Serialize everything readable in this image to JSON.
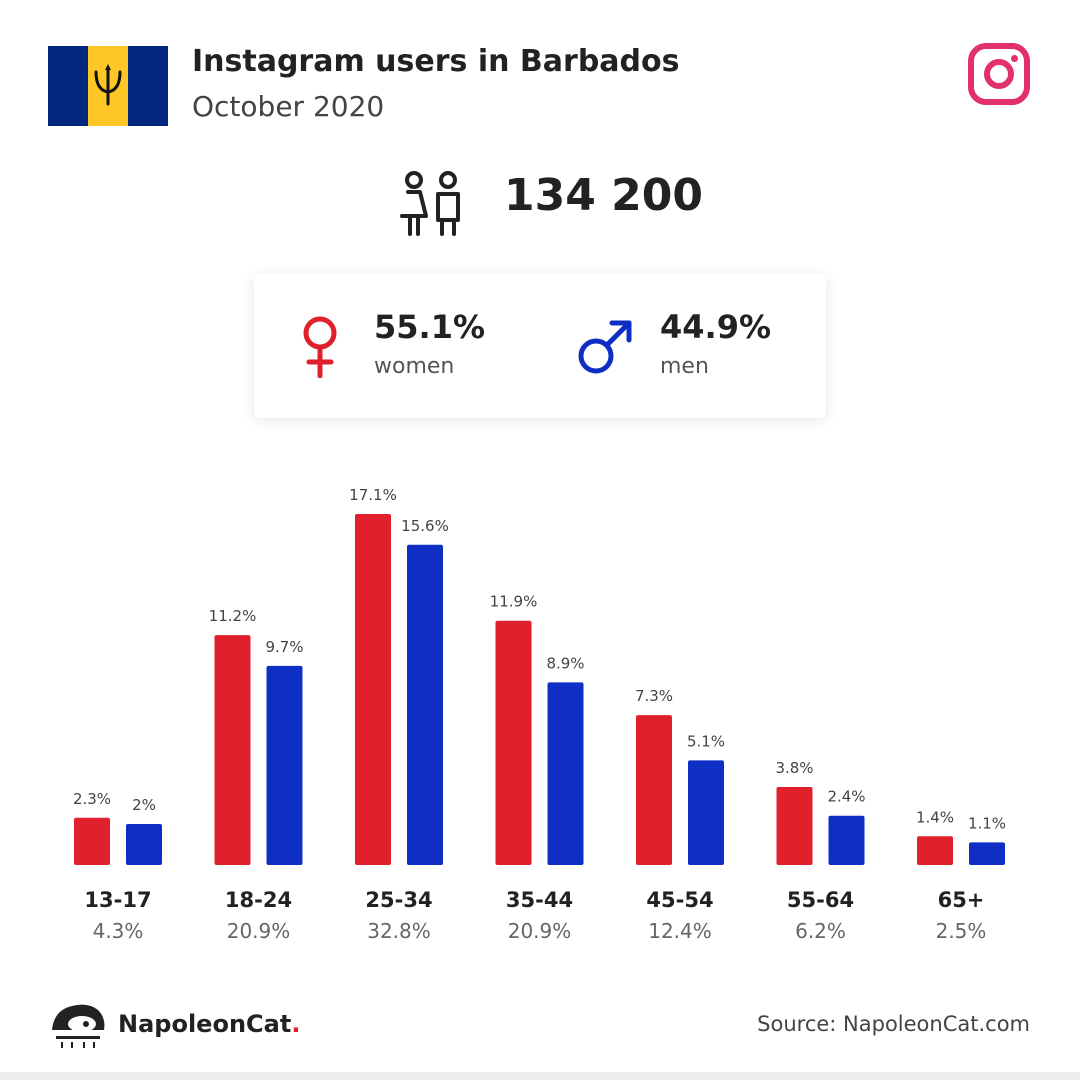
{
  "header": {
    "title": "Instagram users in Barbados",
    "subtitle": "October 2020",
    "flag_icon": "barbados-flag-icon",
    "platform_icon": "instagram-icon",
    "platform_color": "#e1306c"
  },
  "total": {
    "icon": "people-icon",
    "value": "134 200"
  },
  "gender": {
    "women": {
      "pct": "55.1%",
      "label": "women",
      "icon": "female-symbol-icon",
      "color": "#e0202a"
    },
    "men": {
      "pct": "44.9%",
      "label": "men",
      "icon": "male-symbol-icon",
      "color": "#0f2ec4"
    }
  },
  "chart_data": {
    "type": "bar",
    "categories": [
      "13-17",
      "18-24",
      "25-34",
      "35-44",
      "45-54",
      "55-64",
      "65+"
    ],
    "category_totals": [
      "4.3%",
      "20.9%",
      "32.8%",
      "20.9%",
      "12.4%",
      "6.2%",
      "2.5%"
    ],
    "series": [
      {
        "values": [
          2.3,
          11.2,
          17.1,
          11.9,
          7.3,
          3.8,
          1.4
        ],
        "labels": [
          "2.3%",
          "11.2%",
          "17.1%",
          "11.9%",
          "7.3%",
          "3.8%",
          "1.4%"
        ],
        "color": "#e0202a"
      },
      {
        "values": [
          2,
          9.7,
          15.6,
          8.9,
          5.1,
          2.4,
          1.1
        ],
        "labels": [
          "2%",
          "9.7%",
          "15.6%",
          "8.9%",
          "5.1%",
          "2.4%",
          "1.1%"
        ],
        "color": "#0f2ec4"
      }
    ],
    "ylim": [
      0,
      17.1
    ],
    "grid": false
  },
  "footer": {
    "brand": "NapoleonCat",
    "brand_dot": ".",
    "source": "Source: NapoleonCat.com",
    "logo_icon": "napoleoncat-logo-icon"
  }
}
